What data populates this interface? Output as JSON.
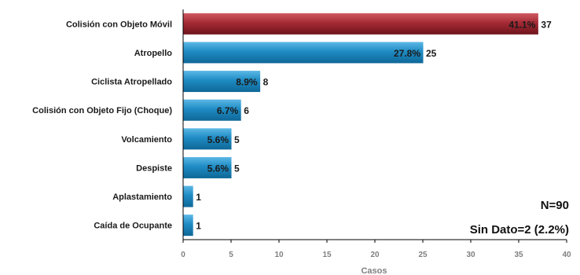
{
  "chart_data": {
    "type": "bar",
    "orientation": "horizontal",
    "categories": [
      "Colisión con Objeto Móvil",
      "Atropello",
      "Ciclista Atropellado",
      "Colisión con Objeto Fijo (Choque)",
      "Volcamiento",
      "Despiste",
      "Aplastamiento",
      "Caída de Ocupante"
    ],
    "values": [
      37,
      25,
      8,
      6,
      5,
      5,
      1,
      1
    ],
    "percent_labels": [
      "41.1%",
      "27.8%",
      "8.9%",
      "6.7%",
      "5.6%",
      "5.6%",
      "",
      ""
    ],
    "highlight_index": 0,
    "xlabel": "Casos",
    "ylabel": "",
    "xlim": [
      0,
      40
    ],
    "xticks": [
      0,
      5,
      10,
      15,
      20,
      25,
      30,
      35,
      40
    ],
    "grid": false,
    "annotations": [
      "N=90",
      "Sin Dato=2 (2.2%)"
    ],
    "colors": {
      "bar": "#1e8bc3",
      "bar_light": "#5cb8e6",
      "bar_dark": "#0f6797",
      "highlight": "#a52a35",
      "highlight_light": "#cf5a62",
      "highlight_dark": "#6e141c",
      "axis": "#000000"
    }
  }
}
